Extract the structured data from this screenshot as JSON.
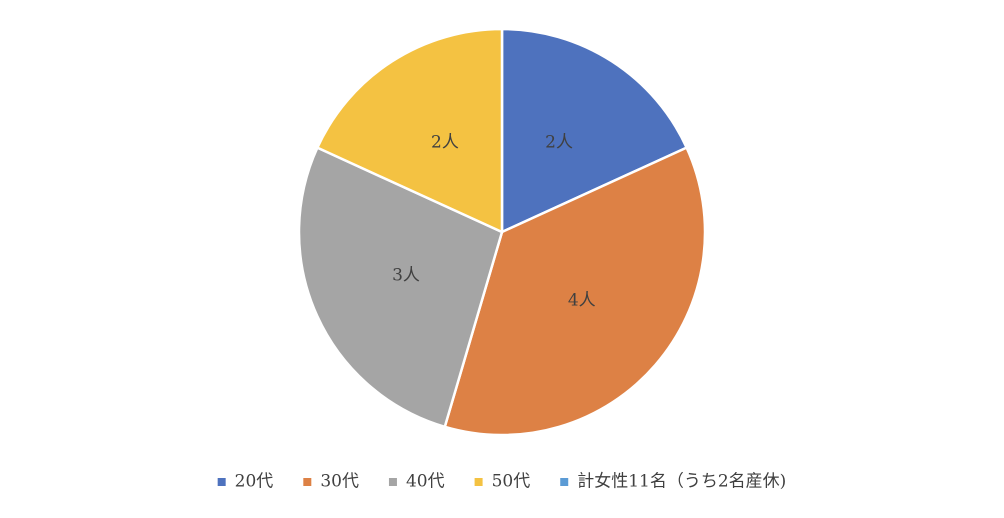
{
  "chart_data": {
    "type": "pie",
    "categories": [
      "20代",
      "30代",
      "40代",
      "50代",
      "計女性11名（うち2名産休)"
    ],
    "values": [
      2,
      4,
      3,
      2,
      0
    ],
    "data_labels": [
      "2人",
      "4人",
      "3人",
      "2人",
      ""
    ],
    "colors": [
      "#4E72BE",
      "#DD8145",
      "#A5A5A5",
      "#F4C242",
      "#5B9BD5"
    ],
    "legend_position": "bottom",
    "title": ""
  }
}
